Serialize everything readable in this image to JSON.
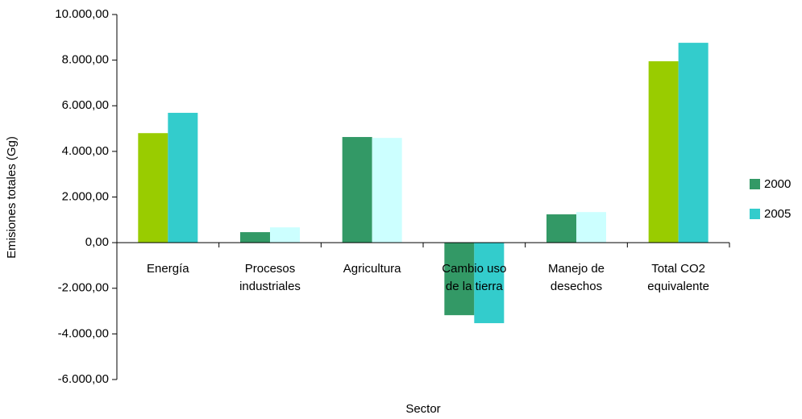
{
  "chart_data": {
    "type": "bar",
    "x_label": "Sector",
    "y_label": "Emisiones totales (Gg)",
    "categories": [
      "Energía",
      "Procesos\nindustriales",
      "Agricultura",
      "Cambio uso\nde la tierra",
      "Manejo de\ndesechos",
      "Total CO2\nequivalente"
    ],
    "series": [
      {
        "name": "2000",
        "color": "#339966",
        "colors": [
          "#99cc00",
          "#339966",
          "#339966",
          "#339966",
          "#339966",
          "#99cc00"
        ],
        "values": [
          4800,
          460,
          4630,
          -3180,
          1240,
          7950
        ]
      },
      {
        "name": "2005",
        "color": "#33cccc",
        "colors": [
          "#33cccc",
          "#ccffff",
          "#ccffff",
          "#33cccc",
          "#ccffff",
          "#33cccc"
        ],
        "values": [
          5690,
          670,
          4590,
          -3530,
          1340,
          8760
        ]
      }
    ],
    "ylim": [
      -6000,
      10000
    ],
    "yticks": [
      {
        "value": -6000,
        "label": "-6.000,00"
      },
      {
        "value": -4000,
        "label": "-4.000,00"
      },
      {
        "value": -2000,
        "label": "-2.000,00"
      },
      {
        "value": 0,
        "label": "0,00"
      },
      {
        "value": 2000,
        "label": "2.000,00"
      },
      {
        "value": 4000,
        "label": "4.000,00"
      },
      {
        "value": 6000,
        "label": "6.000,00"
      },
      {
        "value": 8000,
        "label": "8.000,00"
      },
      {
        "value": 10000,
        "label": "10.000,00"
      }
    ],
    "legend": "right"
  }
}
